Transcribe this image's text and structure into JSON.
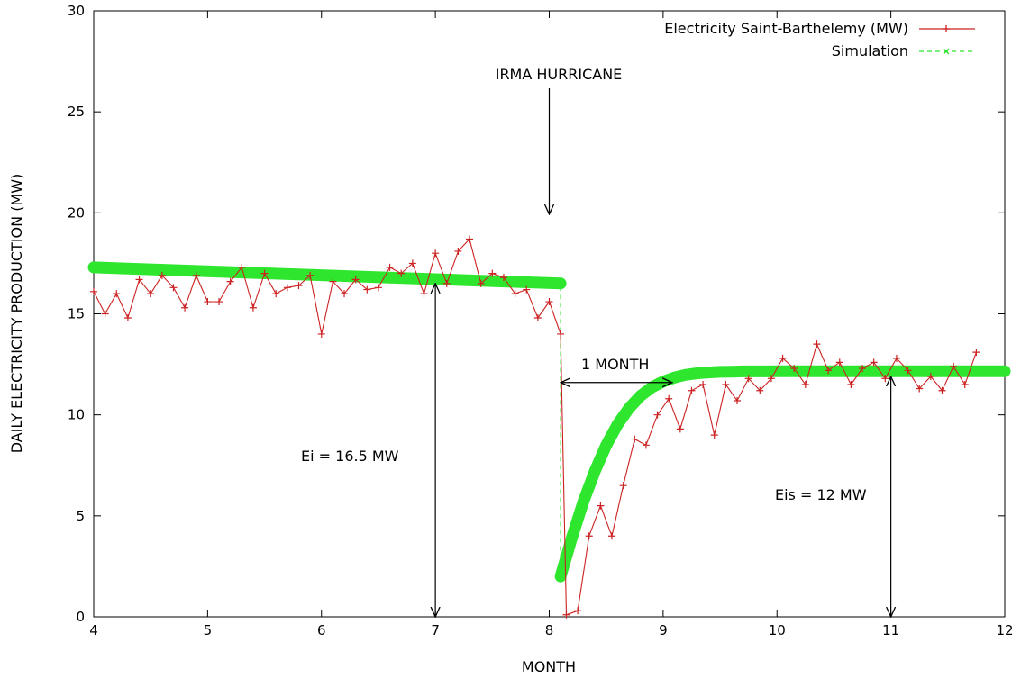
{
  "chart_data": {
    "type": "line",
    "xlabel": "MONTH",
    "ylabel": "DAILY ELECTRICITY PRODUCTION (MW)",
    "xlim": [
      4,
      12
    ],
    "ylim": [
      0,
      30
    ],
    "xticks": [
      4,
      5,
      6,
      7,
      8,
      9,
      10,
      11,
      12
    ],
    "yticks": [
      0,
      5,
      10,
      15,
      20,
      25,
      30
    ],
    "legend_position": "top-right",
    "series": [
      {
        "name": "Electricity Saint-Barthelemy (MW)",
        "color": "#cc2222",
        "marker": "plus",
        "style": "solid",
        "x": [
          4.0,
          4.1,
          4.2,
          4.3,
          4.4,
          4.5,
          4.6,
          4.7,
          4.8,
          4.9,
          5.0,
          5.1,
          5.2,
          5.3,
          5.4,
          5.5,
          5.6,
          5.7,
          5.8,
          5.9,
          6.0,
          6.1,
          6.2,
          6.3,
          6.4,
          6.5,
          6.6,
          6.7,
          6.8,
          6.9,
          7.0,
          7.1,
          7.2,
          7.3,
          7.4,
          7.5,
          7.6,
          7.7,
          7.8,
          7.9,
          8.0,
          8.1,
          8.15,
          8.25,
          8.35,
          8.45,
          8.55,
          8.65,
          8.75,
          8.85,
          8.95,
          9.05,
          9.15,
          9.25,
          9.35,
          9.45,
          9.55,
          9.65,
          9.75,
          9.85,
          9.95,
          10.05,
          10.15,
          10.25,
          10.35,
          10.45,
          10.55,
          10.65,
          10.75,
          10.85,
          10.95,
          11.05,
          11.15,
          11.25,
          11.35,
          11.45,
          11.55,
          11.65,
          11.75
        ],
        "y": [
          16.1,
          15.0,
          16.0,
          14.8,
          16.7,
          16.0,
          16.9,
          16.3,
          15.3,
          16.9,
          15.6,
          15.6,
          16.6,
          17.3,
          15.3,
          17.0,
          16.0,
          16.3,
          16.4,
          16.9,
          14.0,
          16.6,
          16.0,
          16.7,
          16.2,
          16.3,
          17.3,
          17.0,
          17.5,
          16.0,
          18.0,
          16.5,
          18.1,
          18.7,
          16.5,
          17.0,
          16.8,
          16.0,
          16.2,
          14.8,
          15.6,
          14.0,
          0.1,
          0.3,
          4.0,
          5.5,
          4.0,
          6.5,
          8.8,
          8.5,
          10.0,
          10.8,
          9.3,
          11.2,
          11.5,
          9.0,
          11.5,
          10.7,
          11.8,
          11.2,
          11.8,
          12.8,
          12.3,
          11.5,
          13.5,
          12.2,
          12.6,
          11.5,
          12.3,
          12.6,
          11.8,
          12.8,
          12.2,
          11.3,
          11.9,
          11.2,
          12.4,
          11.5,
          13.1
        ]
      },
      {
        "name": "Simulation",
        "color": "#2ee62e",
        "marker": "cross",
        "style": "dashed",
        "x": [
          4.0,
          8.1,
          8.1,
          8.2,
          8.3,
          8.4,
          8.5,
          8.6,
          8.7,
          8.8,
          8.9,
          9.0,
          9.1,
          9.2,
          9.3,
          9.4,
          9.5,
          9.6,
          9.7,
          9.8,
          9.9,
          10.0,
          10.5,
          11.0,
          11.5,
          12.0
        ],
        "y": [
          17.3,
          16.5,
          2.0,
          3.95,
          5.7,
          7.21,
          8.49,
          9.52,
          10.33,
          10.93,
          11.36,
          11.65,
          11.85,
          11.98,
          12.06,
          12.1,
          12.13,
          12.14,
          12.15,
          12.15,
          12.15,
          12.16,
          12.16,
          12.16,
          12.16,
          12.16
        ]
      }
    ],
    "annotations": [
      {
        "text": "IRMA HURRICANE",
        "x": 8.0,
        "y": 27.0
      },
      {
        "text": "1 MONTH",
        "x": 8.5,
        "y": 12.2
      },
      {
        "text": "Ei = 16.5 MW",
        "x": 6.0,
        "y": 8.0
      },
      {
        "text": "Eis = 12 MW",
        "x": 10.4,
        "y": 6.0
      }
    ]
  }
}
